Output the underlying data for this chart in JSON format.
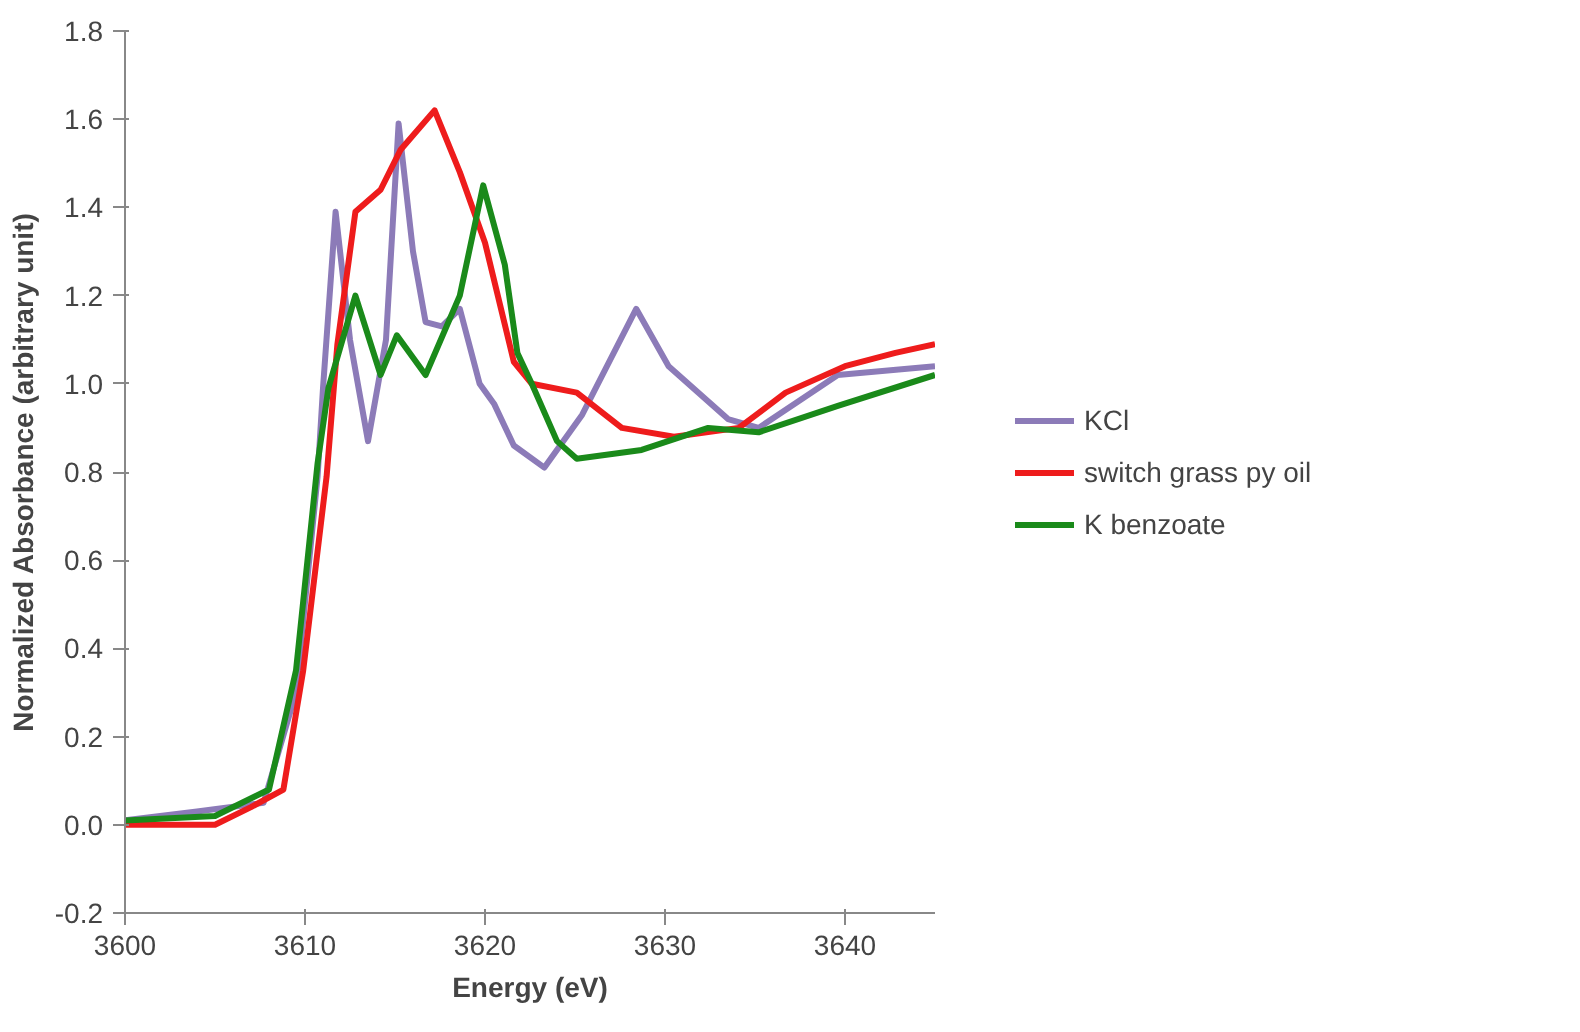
{
  "chart_data": {
    "type": "line",
    "xlabel": "Energy (eV)",
    "ylabel": "Normalized Absorbance (arbitrary unit)",
    "xlim": [
      3600,
      3645
    ],
    "xticks": [
      3600,
      3610,
      3620,
      3630,
      3640
    ],
    "ylim": [
      -0.2,
      1.8
    ],
    "yticks": [
      -0.2,
      {
        "value": 0,
        "label": "0.0"
      },
      0.2,
      0.4,
      0.6,
      0.8,
      {
        "value": 1,
        "label": "1.0"
      },
      1.2,
      1.4,
      1.6,
      1.8
    ],
    "grid": false,
    "legend": "right",
    "marker": "none",
    "line_style": "solid",
    "series": [
      {
        "name": "KCl",
        "color": "#8c7bb8",
        "x": [
          3600,
          3604,
          3607.7,
          3609.5,
          3610.7,
          3611,
          3611.7,
          3612.5,
          3613.5,
          3614.5,
          3615.2,
          3616,
          3616.7,
          3617.6,
          3618.6,
          3619.7,
          3620.5,
          3621.6,
          3623.3,
          3625.4,
          3628.4,
          3630.2,
          3633.5,
          3635.2,
          3639.6,
          3645
        ],
        "values": [
          0.01,
          0.03,
          0.05,
          0.3,
          0.79,
          0.99,
          1.39,
          1.1,
          0.87,
          1.1,
          1.59,
          1.3,
          1.14,
          1.13,
          1.17,
          1.0,
          0.955,
          0.86,
          0.81,
          0.93,
          1.17,
          1.04,
          0.92,
          0.9,
          1.02,
          1.04
        ]
      },
      {
        "name": "switch grass py oil",
        "color": "#ee1c1c",
        "x": [
          3600,
          3605,
          3607,
          3608.8,
          3609.9,
          3611.2,
          3611.8,
          3612.8,
          3614.2,
          3615.3,
          3617.2,
          3618.6,
          3620,
          3621.6,
          3622.6,
          3625.1,
          3627.6,
          3630.5,
          3634.1,
          3636.7,
          3640,
          3642.8,
          3645
        ],
        "values": [
          0.0,
          0.0,
          0.04,
          0.08,
          0.35,
          0.79,
          1.09,
          1.39,
          1.44,
          1.53,
          1.62,
          1.48,
          1.32,
          1.05,
          1.0,
          0.98,
          0.9,
          0.88,
          0.9,
          0.98,
          1.04,
          1.07,
          1.09
        ]
      },
      {
        "name": "K benzoate",
        "color": "#1a8a1a",
        "x": [
          3600,
          3605,
          3608,
          3609.5,
          3610.7,
          3611.3,
          3612.8,
          3614.2,
          3615.1,
          3616.7,
          3618.6,
          3619.9,
          3621.1,
          3621.8,
          3622.6,
          3624,
          3625.1,
          3628.7,
          3632.4,
          3635.2,
          3639.6,
          3645
        ],
        "values": [
          0.01,
          0.02,
          0.08,
          0.35,
          0.82,
          0.99,
          1.2,
          1.02,
          1.11,
          1.02,
          1.2,
          1.45,
          1.27,
          1.07,
          1.0,
          0.87,
          0.83,
          0.85,
          0.9,
          0.89,
          0.95,
          1.02
        ]
      }
    ]
  }
}
